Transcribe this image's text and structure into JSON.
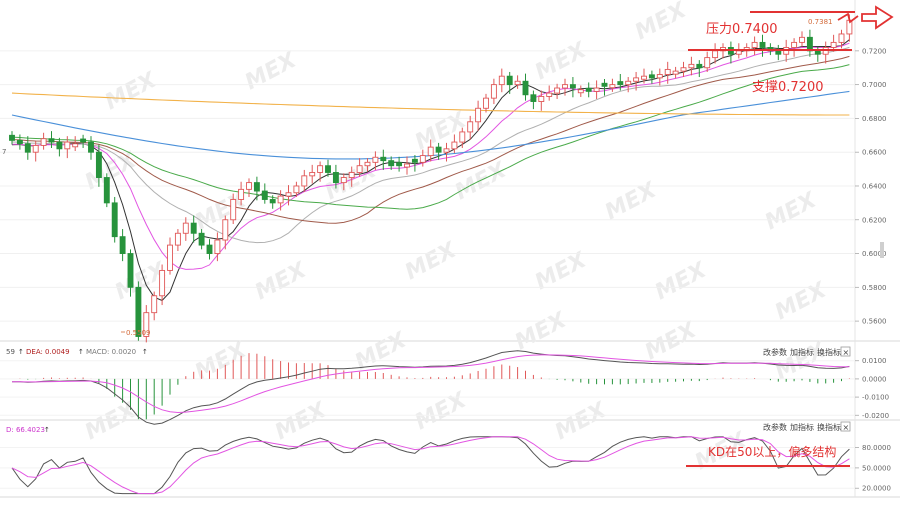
{
  "price_panel": {
    "y_ticks": [
      "0.7200",
      "0.7000",
      "0.6800",
      "0.6600",
      "0.6400",
      "0.6200",
      "0.6000",
      "0.5800",
      "0.5600"
    ],
    "high_label": "0.7381",
    "low_label": "0.5509",
    "left_label": "7",
    "resistance_label": "压力0.7400",
    "support_label": "支撑0.7200"
  },
  "macd_panel": {
    "header_prefix": "59",
    "dea_label": "DEA: 0.0049",
    "macd_label": "MACD: 0.0020",
    "y_ticks": [
      "0.0100",
      "0.0000",
      "-0.0100",
      "-0.0200"
    ]
  },
  "kd_panel": {
    "header_label": "D: 66.4023",
    "y_ticks": [
      "80.0000",
      "50.0000",
      "20.0000"
    ],
    "annotation": "KD在50以上，偏多结构"
  },
  "toolbar": {
    "change_params": "改参数",
    "add_indicator": "加指标",
    "swap_indicator": "换指标",
    "close": "×"
  },
  "colors": {
    "up": "#e05858",
    "down": "#27933c",
    "accent": "#e23232",
    "ma_pink": "#e255e2",
    "ma_black": "#333333",
    "ma_brown": "#a05a4a",
    "ma_green": "#4aaa4a",
    "ma_blue": "#4a90d9",
    "ma_orange": "#f2b24a"
  },
  "watermark": "MEX",
  "chart_data": {
    "type": "candlestick",
    "price_ylim": [
      0.55,
      0.743
    ],
    "resistance": 0.74,
    "support": 0.72,
    "low_marked": 0.5509,
    "high_marked": 0.7381,
    "close_series": [
      0.667,
      0.665,
      0.66,
      0.664,
      0.668,
      0.666,
      0.662,
      0.666,
      0.665,
      0.666,
      0.66,
      0.645,
      0.63,
      0.61,
      0.6,
      0.58,
      0.5509,
      0.565,
      0.575,
      0.59,
      0.605,
      0.612,
      0.618,
      0.612,
      0.605,
      0.6,
      0.608,
      0.62,
      0.632,
      0.638,
      0.642,
      0.637,
      0.632,
      0.63,
      0.634,
      0.636,
      0.64,
      0.646,
      0.648,
      0.652,
      0.648,
      0.642,
      0.645,
      0.648,
      0.652,
      0.654,
      0.657,
      0.655,
      0.652,
      0.652,
      0.653,
      0.654,
      0.658,
      0.663,
      0.66,
      0.662,
      0.666,
      0.672,
      0.678,
      0.686,
      0.692,
      0.7,
      0.705,
      0.7,
      0.702,
      0.694,
      0.69,
      0.693,
      0.695,
      0.698,
      0.7,
      0.698,
      0.697,
      0.696,
      0.698,
      0.699,
      0.7,
      0.7,
      0.702,
      0.704,
      0.705,
      0.704,
      0.706,
      0.709,
      0.708,
      0.71,
      0.712,
      0.71,
      0.716,
      0.72,
      0.722,
      0.718,
      0.72,
      0.722,
      0.725,
      0.722,
      0.72,
      0.718,
      0.722,
      0.725,
      0.728,
      0.72,
      0.718,
      0.722,
      0.725,
      0.73,
      0.7381
    ],
    "macd": {
      "dea": 0.0049,
      "macd": 0.002,
      "ylim": [
        -0.0215,
        0.0115
      ]
    },
    "kd": {
      "d": 66.4023,
      "ylim": [
        10,
        100
      ]
    }
  }
}
